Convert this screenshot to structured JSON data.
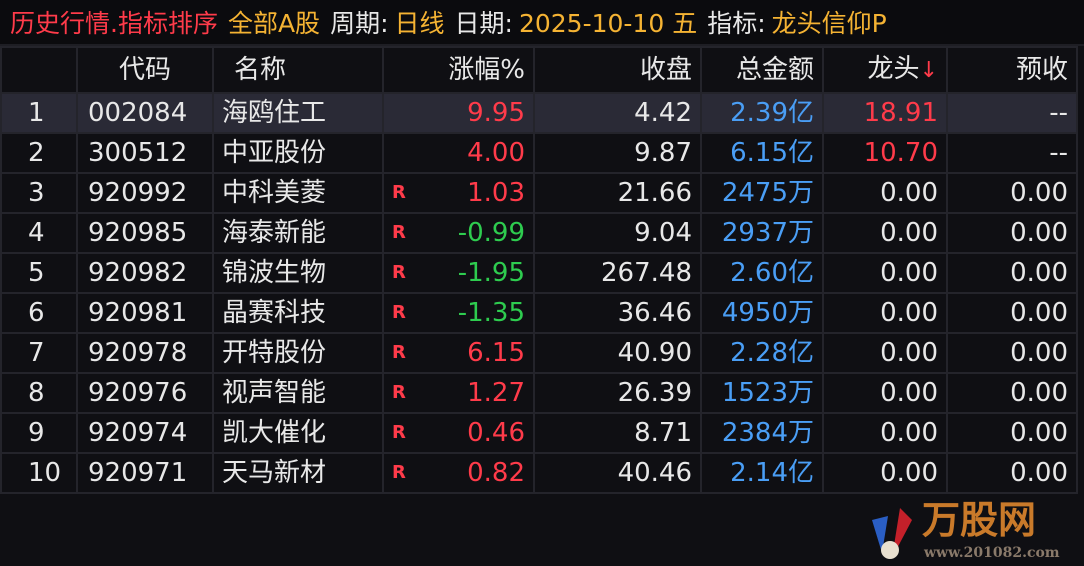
{
  "title": {
    "module": "历史行情.指标排序",
    "market": "全部A股",
    "period_label": "周期:",
    "period": "日线",
    "date_label": "日期:",
    "date": "2025-10-10 五",
    "indicator_label": "指标:",
    "indicator": "龙头信仰P"
  },
  "columns": [
    "",
    "代码",
    "名称",
    "涨幅%",
    "收盘",
    "总金额",
    "龙头",
    "预收"
  ],
  "sort": {
    "column": "龙头",
    "direction": "desc",
    "icon": "arrow-down-icon",
    "glyph": "↓"
  },
  "rows": [
    {
      "idx": "1",
      "code": "002084",
      "name": "海鸥住工",
      "r": "",
      "chg": "9.95",
      "dir": "up",
      "close": "4.42",
      "amount": "2.39亿",
      "lt": "18.91",
      "lt_dir": "up",
      "ys": "--"
    },
    {
      "idx": "2",
      "code": "300512",
      "name": "中亚股份",
      "r": "",
      "chg": "4.00",
      "dir": "up",
      "close": "9.87",
      "amount": "6.15亿",
      "lt": "10.70",
      "lt_dir": "up",
      "ys": "--"
    },
    {
      "idx": "3",
      "code": "920992",
      "name": "中科美菱",
      "r": "R",
      "chg": "1.03",
      "dir": "up",
      "close": "21.66",
      "amount": "2475万",
      "lt": "0.00",
      "ys": "0.00"
    },
    {
      "idx": "4",
      "code": "920985",
      "name": "海泰新能",
      "r": "R",
      "chg": "-0.99",
      "dir": "dn",
      "close": "9.04",
      "amount": "2937万",
      "lt": "0.00",
      "ys": "0.00"
    },
    {
      "idx": "5",
      "code": "920982",
      "name": "锦波生物",
      "r": "R",
      "chg": "-1.95",
      "dir": "dn",
      "close": "267.48",
      "amount": "2.60亿",
      "lt": "0.00",
      "ys": "0.00"
    },
    {
      "idx": "6",
      "code": "920981",
      "name": "晶赛科技",
      "r": "R",
      "chg": "-1.35",
      "dir": "dn",
      "close": "36.46",
      "amount": "4950万",
      "lt": "0.00",
      "ys": "0.00"
    },
    {
      "idx": "7",
      "code": "920978",
      "name": "开特股份",
      "r": "R",
      "chg": "6.15",
      "dir": "up",
      "close": "40.90",
      "amount": "2.28亿",
      "lt": "0.00",
      "ys": "0.00"
    },
    {
      "idx": "8",
      "code": "920976",
      "name": "视声智能",
      "r": "R",
      "chg": "1.27",
      "dir": "up",
      "close": "26.39",
      "amount": "1523万",
      "lt": "0.00",
      "ys": "0.00"
    },
    {
      "idx": "9",
      "code": "920974",
      "name": "凯大催化",
      "r": "R",
      "chg": "0.46",
      "dir": "up",
      "close": "8.71",
      "amount": "2384万",
      "lt": "0.00",
      "ys": "0.00"
    },
    {
      "idx": "10",
      "code": "920971",
      "name": "天马新材",
      "r": "R",
      "chg": "0.82",
      "dir": "up",
      "close": "40.46",
      "amount": "2.14亿",
      "lt": "0.00",
      "ys": "0.00"
    }
  ],
  "selected_row": 0,
  "watermark": {
    "name": "万股网",
    "url": "www.201082.com"
  }
}
